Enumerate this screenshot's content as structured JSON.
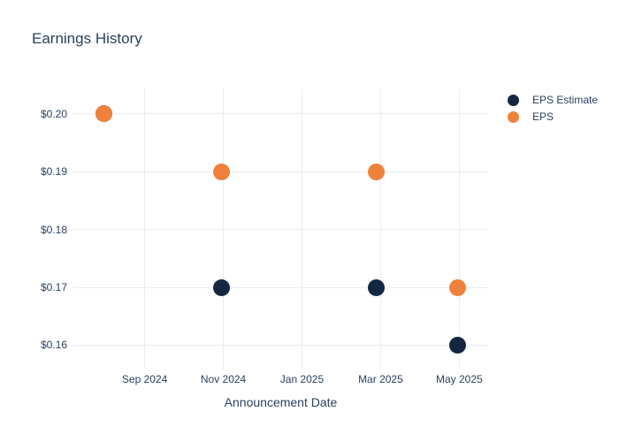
{
  "chart_data": {
    "type": "scatter",
    "title": "Earnings History",
    "xlabel": "Announcement Date",
    "ylabel": "",
    "grid": true,
    "legend_position": "right-top",
    "x_range": [
      "2024-07-06",
      "2025-05-24"
    ],
    "ylim": [
      0.1567,
      0.2044
    ],
    "x_ticks": [
      {
        "label": "Sep 2024",
        "date": "2024-09-01"
      },
      {
        "label": "Nov 2024",
        "date": "2024-11-01"
      },
      {
        "label": "Jan 2025",
        "date": "2025-01-01"
      },
      {
        "label": "Mar 2025",
        "date": "2025-03-01"
      },
      {
        "label": "May 2025",
        "date": "2025-05-01"
      }
    ],
    "y_ticks": [
      {
        "label": "$0.20",
        "value": 0.2
      },
      {
        "label": "$0.19",
        "value": 0.19
      },
      {
        "label": "$0.18",
        "value": 0.18
      },
      {
        "label": "$0.17",
        "value": 0.17
      },
      {
        "label": "$0.16",
        "value": 0.16
      }
    ],
    "series": [
      {
        "name": "EPS Estimate",
        "color": "#142741",
        "points": [
          {
            "date": "2024-07-30",
            "value": 0.2
          },
          {
            "date": "2024-10-30",
            "value": 0.17
          },
          {
            "date": "2025-02-28",
            "value": 0.17
          },
          {
            "date": "2025-04-30",
            "value": 0.16
          }
        ]
      },
      {
        "name": "EPS",
        "color": "#ef813d",
        "points": [
          {
            "date": "2024-07-30",
            "value": 0.2
          },
          {
            "date": "2024-10-30",
            "value": 0.19
          },
          {
            "date": "2025-02-28",
            "value": 0.19
          },
          {
            "date": "2025-04-30",
            "value": 0.17
          }
        ]
      }
    ],
    "colors": {
      "title_text": "#2a3f5f",
      "axis_text": "#2a3f5f",
      "gridline": "#e9ecf3",
      "background": "#ffffff"
    }
  }
}
